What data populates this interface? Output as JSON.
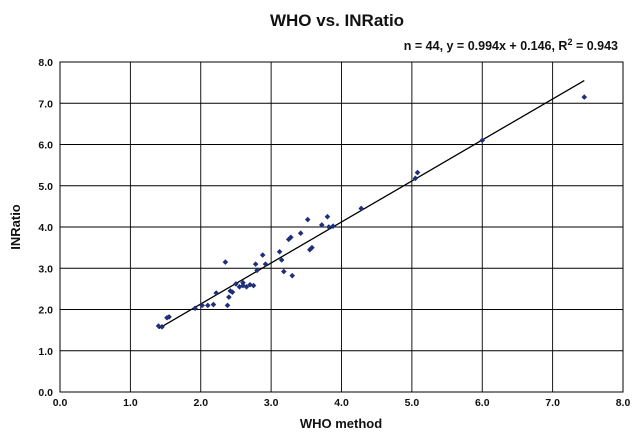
{
  "chart_data": {
    "type": "scatter",
    "title": "WHO vs. INRatio",
    "subtitle": {
      "main": "n = 44, y = 0.994x + 0.146, R",
      "superscript": "2",
      "tail": " = 0.943"
    },
    "xlabel": "WHO method",
    "ylabel": "INRatio",
    "xlim": [
      0,
      8
    ],
    "ylim": [
      0,
      8
    ],
    "x_ticks": [
      "0.0",
      "1.0",
      "2.0",
      "3.0",
      "4.0",
      "5.0",
      "6.0",
      "7.0",
      "8.0"
    ],
    "y_ticks": [
      "0.0",
      "1.0",
      "2.0",
      "3.0",
      "4.0",
      "5.0",
      "6.0",
      "7.0",
      "8.0"
    ],
    "grid": true,
    "marker_color": "#1f2f78",
    "trendline": {
      "slope": 0.994,
      "intercept": 0.146,
      "x_range": [
        1.4,
        7.45
      ]
    },
    "points": [
      [
        1.4,
        1.6
      ],
      [
        1.45,
        1.58
      ],
      [
        1.52,
        1.8
      ],
      [
        1.55,
        1.82
      ],
      [
        1.92,
        2.03
      ],
      [
        2.02,
        2.1
      ],
      [
        2.1,
        2.1
      ],
      [
        2.18,
        2.12
      ],
      [
        2.22,
        2.4
      ],
      [
        2.35,
        3.15
      ],
      [
        2.38,
        2.1
      ],
      [
        2.4,
        2.3
      ],
      [
        2.42,
        2.45
      ],
      [
        2.45,
        2.42
      ],
      [
        2.5,
        2.62
      ],
      [
        2.55,
        2.55
      ],
      [
        2.6,
        2.65
      ],
      [
        2.65,
        2.55
      ],
      [
        2.7,
        2.6
      ],
      [
        2.75,
        2.58
      ],
      [
        2.78,
        3.1
      ],
      [
        2.8,
        2.95
      ],
      [
        2.88,
        3.32
      ],
      [
        2.92,
        3.1
      ],
      [
        3.12,
        3.4
      ],
      [
        3.15,
        3.2
      ],
      [
        3.18,
        2.92
      ],
      [
        3.25,
        3.7
      ],
      [
        3.28,
        3.75
      ],
      [
        3.3,
        2.82
      ],
      [
        3.42,
        3.85
      ],
      [
        3.52,
        4.18
      ],
      [
        3.55,
        3.45
      ],
      [
        3.58,
        3.5
      ],
      [
        3.72,
        4.05
      ],
      [
        3.8,
        4.25
      ],
      [
        3.82,
        4.0
      ],
      [
        3.88,
        4.02
      ],
      [
        4.28,
        4.45
      ],
      [
        5.05,
        5.18
      ],
      [
        5.08,
        5.32
      ],
      [
        6.0,
        6.1
      ],
      [
        7.45,
        7.15
      ],
      [
        2.6,
        2.58
      ]
    ]
  }
}
